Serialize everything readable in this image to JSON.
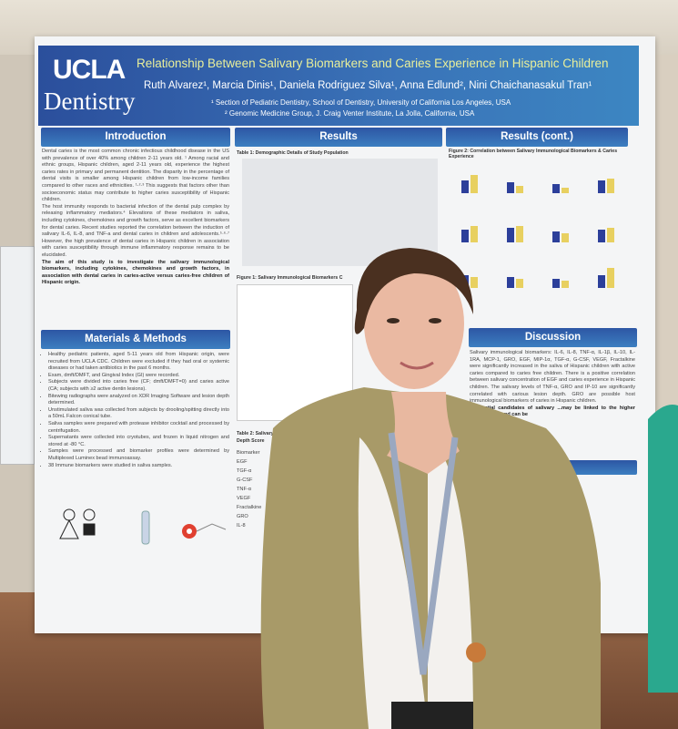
{
  "poster": {
    "logo": {
      "line1": "UCLA",
      "line2": "Dentistry"
    },
    "title": "Relationship Between Salivary Biomarkers and Caries Experience in Hispanic Children",
    "authors": "Ruth Alvarez¹, Marcia Dinis¹, Daniela Rodriguez Silva¹, Anna Edlund², Nini Chaichanasakul Tran¹",
    "affiliation1": "¹ Section of Pediatric Dentistry, School of Dentistry, University of California Los Angeles, USA",
    "affiliation2": "² Genomic Medicine Group, J. Craig Venter Institute, La Jolla, California, USA",
    "introduction": {
      "heading": "Introduction",
      "p1": "Dental caries is the most common chronic infectious childhood disease in the US with prevalence of over 40% among children 2-11 years old. ¹ Among racial and ethnic groups, Hispanic children, aged 2-11 years old, experience the highest caries rates in primary and permanent dentition. The disparity in the percentage of dental visits is smaller among Hispanic children from low-income families compared to other races and ethnicities. ¹·²·³ This suggests that factors other than socioeconomic status may contribute to higher caries susceptibility of Hispanic children.",
      "p2": "The host immunity responds to bacterial infection of the dental pulp complex by releasing inflammatory mediators.⁴ Elevations of these mediators in saliva, including cytokines, chemokines and growth factors, serve as excellent biomarkers for dental caries. Recent studies reported the correlation between the induction of salivary IL-6, IL-8, and TNF-a and dental caries in children and adolescents.⁵·⁶·⁷ However, the high prevalence of dental caries in Hispanic children in association with caries susceptibility through immune inflammatory response remains to be elucidated.",
      "aim": "The aim of this study is to investigate the salivary immunological biomarkers, including cytokines, chemokines and growth factors, in association with dental caries in caries-active versus caries-free children of Hispanic origin."
    },
    "methods": {
      "heading": "Materials & Methods",
      "items": [
        "Healthy pediatric patients, aged 5-11 years old from Hispanic origin, were recruited from UCLA CDC. Children were excluded if they had oral or systemic diseases or had taken antibiotics in the past 6 months.",
        "Exam, dmft/DMFT, and Gingival Index (GI) were recorded.",
        "Subjects were divided into caries free (CF; dmft/DMFT=0) and caries active (CA; subjects with ≥2 active dentin lesions).",
        "Bitewing radiographs were analyzed on XDR Imaging Software and lesion depth determined.",
        "Unstimulated saliva was collected from subjects by drooling/spitting directly into a 50mL Falcon conical tube.",
        "Saliva samples were prepared with protease inhibitor cocktail and processed by centrifugation.",
        "Supernatants were collected into cryotubes, and frozen in liquid nitrogen and stored at -80 °C.",
        "Samples were processed and biomarker profiles were determined by Multiplexed Luminex bead immunoassay.",
        "38 Immune biomarkers were studied in saliva samples."
      ]
    },
    "results": {
      "heading": "Results",
      "table1": "Table 1: Demographic Details of Study Population",
      "figure1": "Figure 1: Salivary Immunological Biomarkers C",
      "table2": "Table 2: Salivary Immunological Biom Lesion Depth Score",
      "table2_rows": [
        "Biomarker",
        "EGF",
        "TGF-α",
        "G-CSF",
        "TNF-α",
        "VEGF",
        "Fractalkine",
        "GRO",
        "IL-8"
      ]
    },
    "results_cont": {
      "heading": "Results (cont.)",
      "figure2": "Figure 2: Correlation between Salivary Immunological Biomarkers & Caries Experience"
    },
    "discussion": {
      "heading": "Discussion",
      "text": "Salivary immunological biomarkers: IL-6, IL-8, TNF-α, IL-1β, IL-10, IL-1RA, MCP-1, GRO, EGF, MIP-1α, TGF-α, G-CSF, VEGF, Fractalkine were significantly increased in the saliva of Hispanic children with active caries compared to caries free children. There is a positive correlation between salivary concentration of EGF and caries experience in Hispanic children. The salivary levels of TNF-α, GRO and IP-10 are significantly correlated with carious lesion depth. GRO are possible host immunological biomarkers of caries in Hispanic children.",
      "bold": "...potential candidates of salivary ...may be linked to the higher ...population and can be"
    }
  },
  "colors": {
    "header_blue": "#2b4f9c",
    "title_yellow": "#e9ef9a",
    "jacket": "#a89a68",
    "hair": "#4a3020"
  }
}
